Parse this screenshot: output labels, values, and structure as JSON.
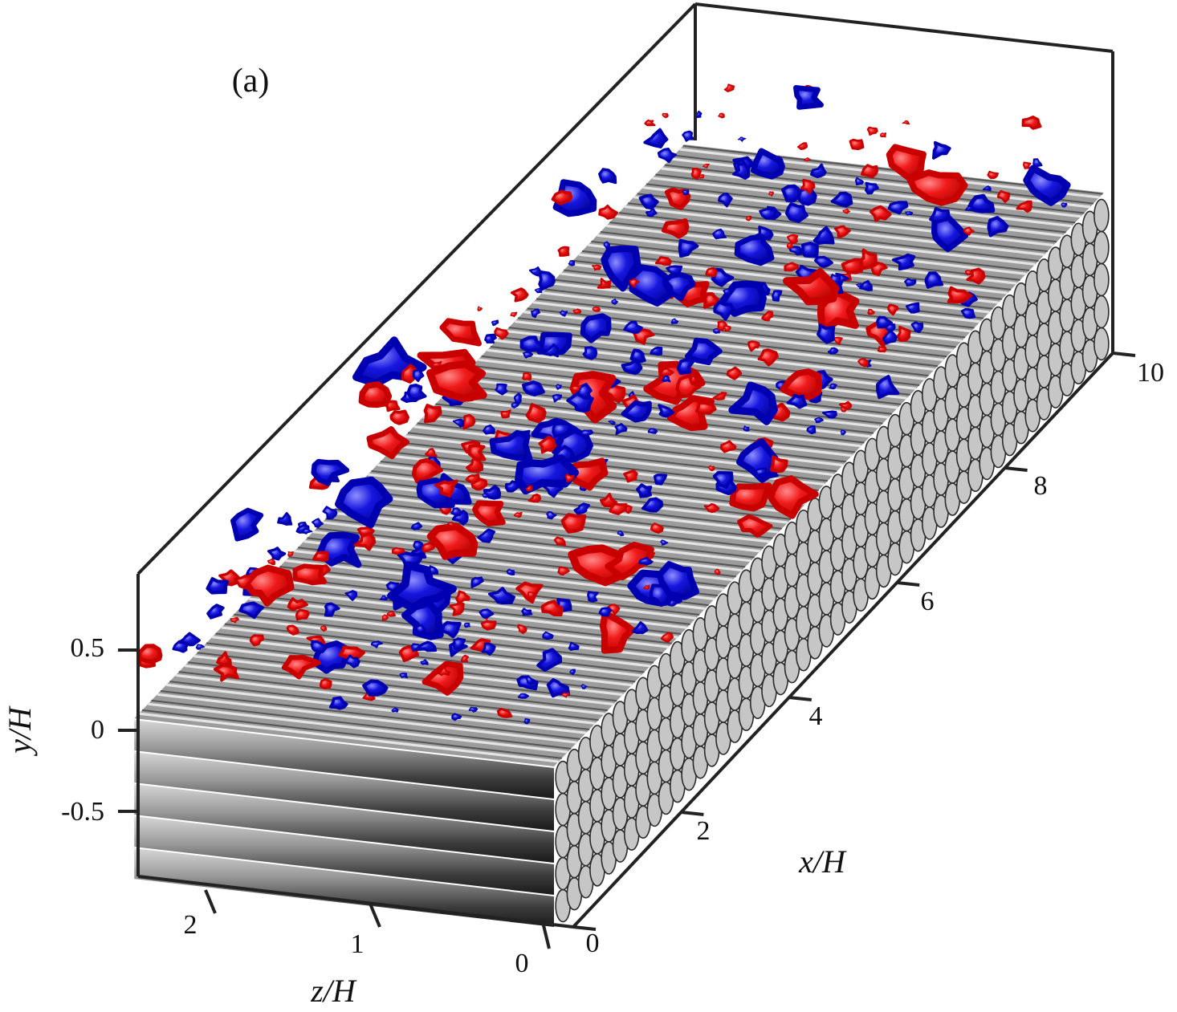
{
  "chart_data": {
    "type": "3d-isosurface",
    "panel_label": "(a)",
    "xlabel": "x/H",
    "ylabel": "y/H",
    "zlabel": "z/H",
    "x_ticks": [
      "0",
      "2",
      "4",
      "6",
      "8",
      "10"
    ],
    "y_ticks": [
      "0.5",
      "0",
      "-0.5"
    ],
    "z_ticks": [
      "2",
      "1",
      "0"
    ],
    "xlim": [
      0,
      10
    ],
    "ylim": [
      -0.85,
      0.85
    ],
    "zlim": [
      0,
      2.5
    ],
    "surface": "array of circular rods along x (y < 0 region), stacked rows",
    "isosurface_colors": {
      "positive": "#e81416",
      "negative": "#1010d8"
    },
    "rod_color": "#8a8a8a",
    "box_color": "#222222"
  }
}
